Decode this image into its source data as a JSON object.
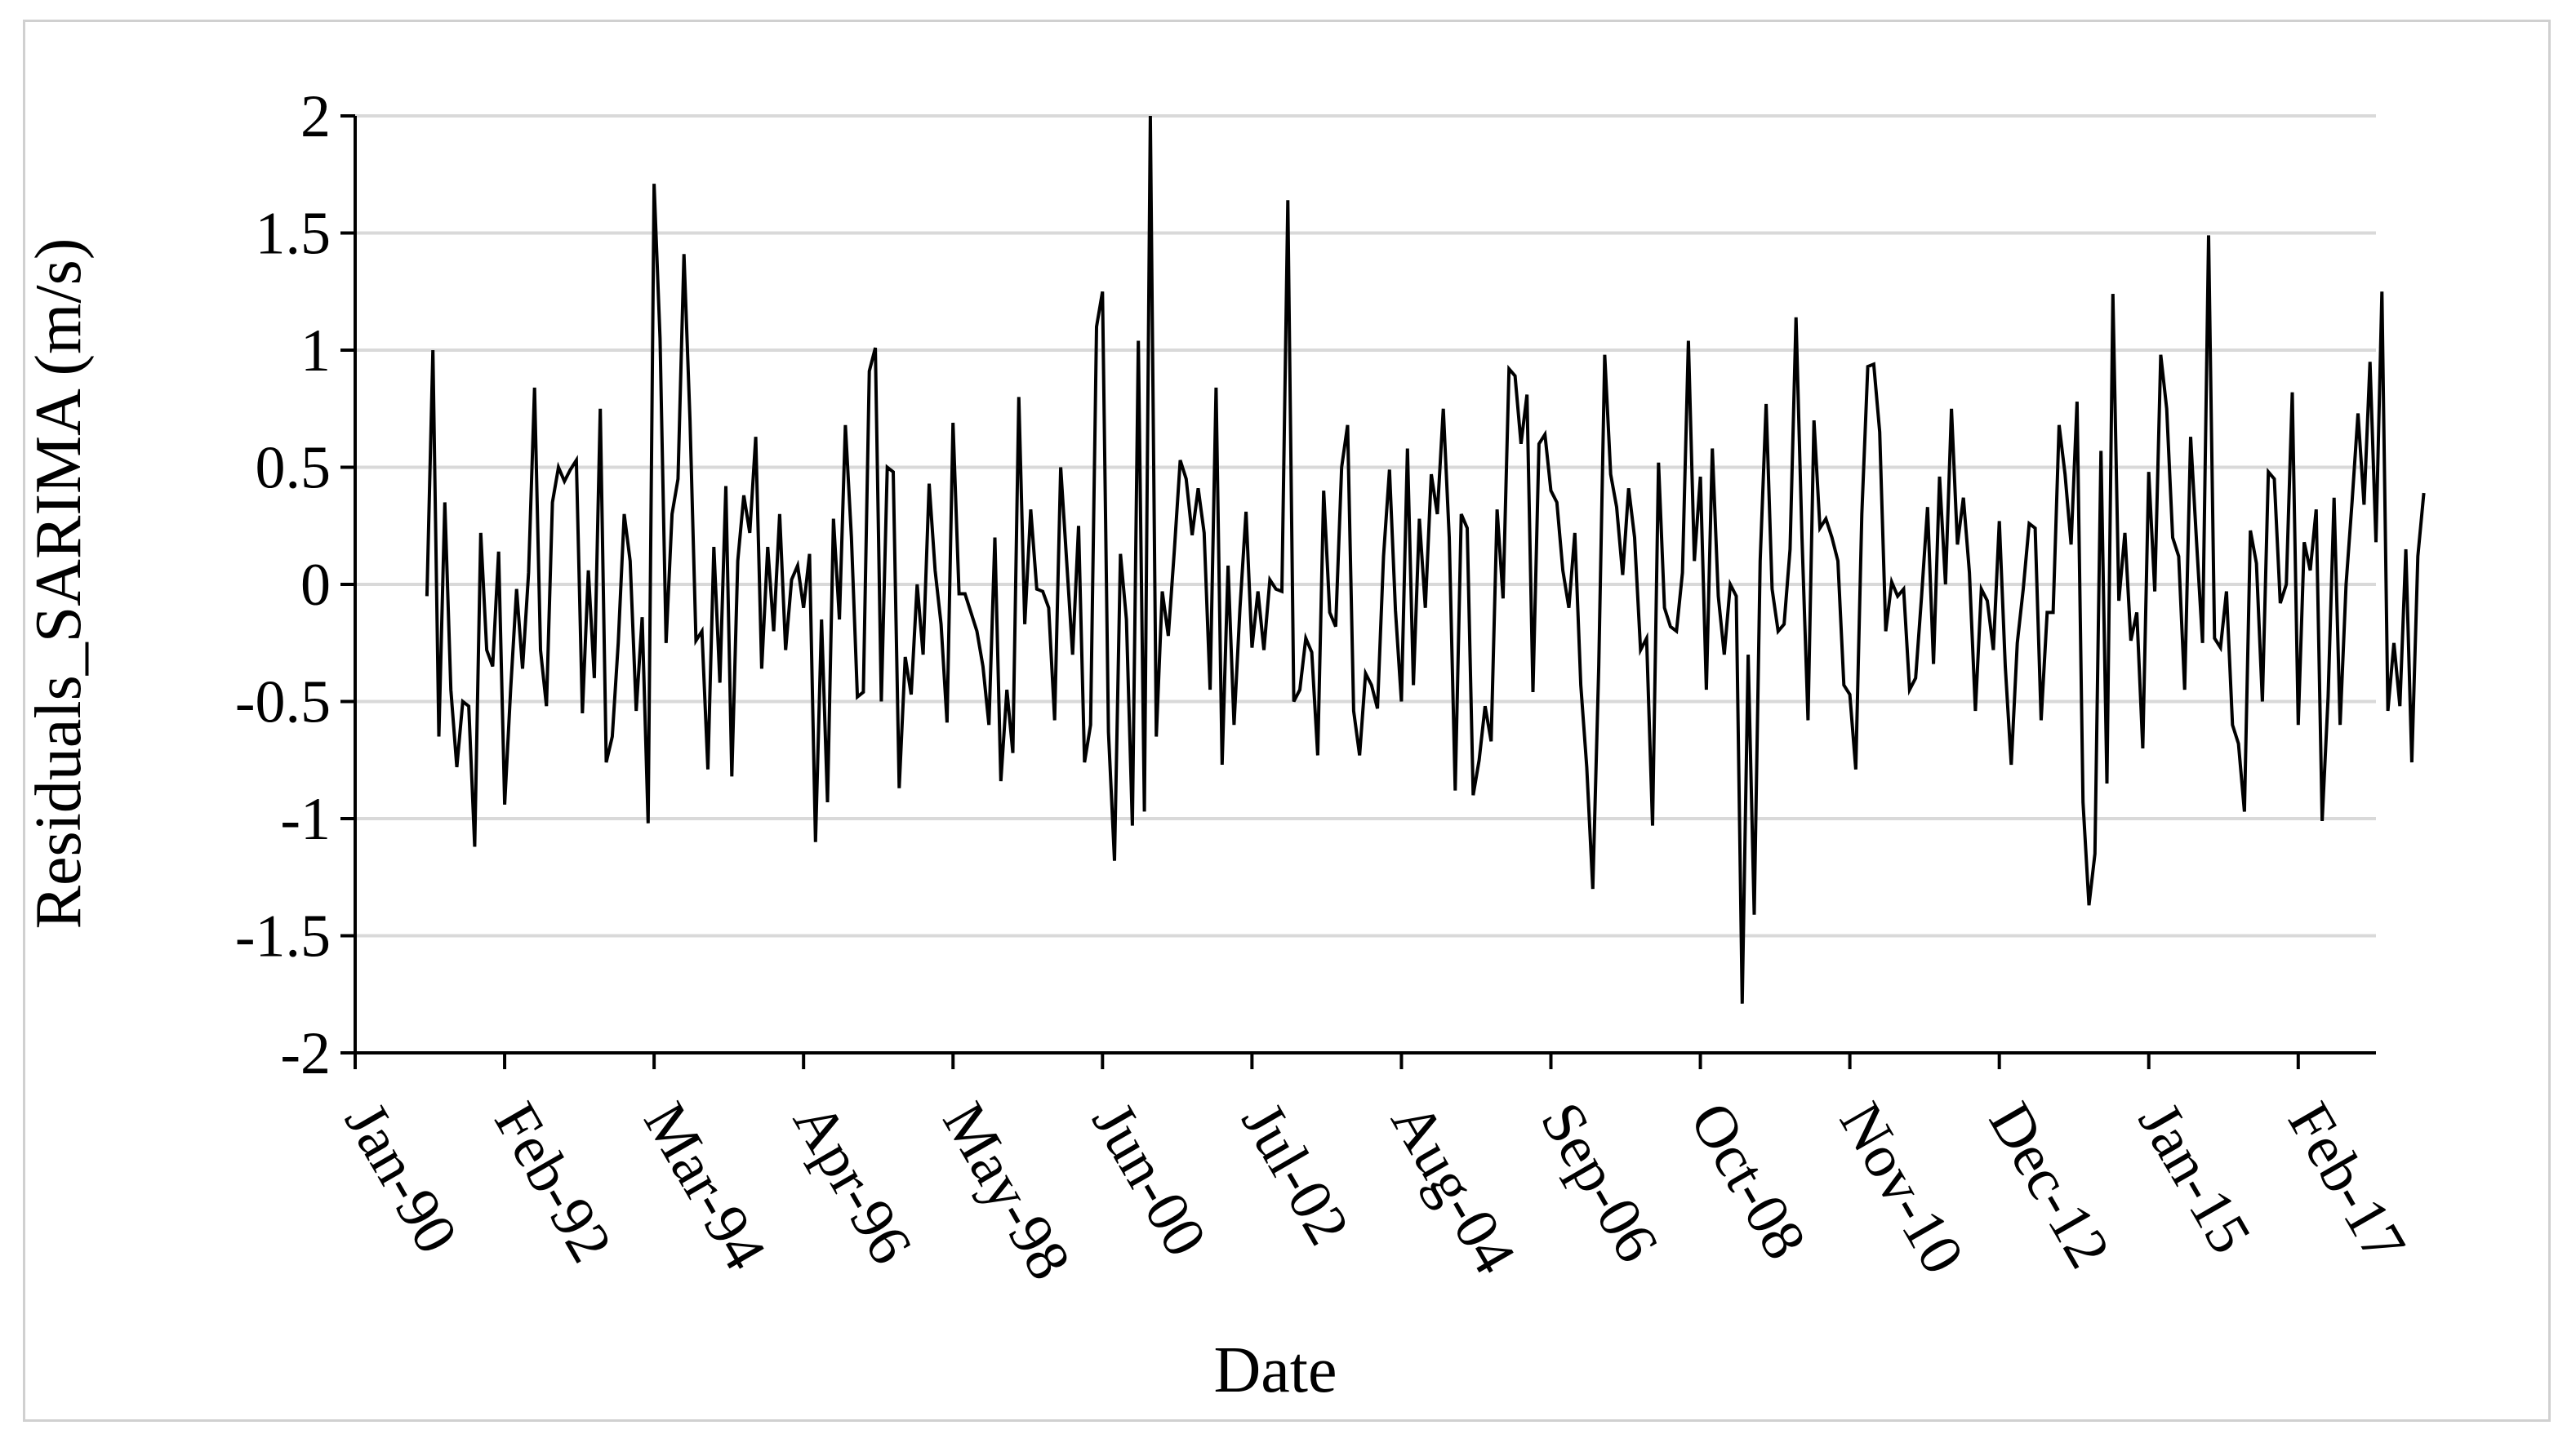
{
  "chart_data": {
    "type": "line",
    "title": "",
    "xlabel": "Date",
    "ylabel": "Residuals_SARIMA (m/s)",
    "ylim": [
      -2,
      2
    ],
    "yticks": [
      "-2",
      "-1.5",
      "-1",
      "-0.5",
      "0",
      "0.5",
      "1",
      "1.5",
      "2"
    ],
    "xlim": [
      "1990-01",
      "2018-03"
    ],
    "xticks": [
      {
        "label": "Jan-90",
        "date": "1990-01"
      },
      {
        "label": "Feb-92",
        "date": "1992-02"
      },
      {
        "label": "Mar-94",
        "date": "1994-03"
      },
      {
        "label": "Apr-96",
        "date": "1996-04"
      },
      {
        "label": "May-98",
        "date": "1998-05"
      },
      {
        "label": "Jun-00",
        "date": "2000-06"
      },
      {
        "label": "Jul-02",
        "date": "2002-07"
      },
      {
        "label": "Aug-04",
        "date": "2004-08"
      },
      {
        "label": "Sep-06",
        "date": "2006-09"
      },
      {
        "label": "Oct-08",
        "date": "2008-10"
      },
      {
        "label": "Nov-10",
        "date": "2010-11"
      },
      {
        "label": "Dec-12",
        "date": "2012-12"
      },
      {
        "label": "Jan-15",
        "date": "2015-01"
      },
      {
        "label": "Feb-17",
        "date": "2017-02"
      }
    ],
    "grid": true,
    "line_color": "#000000",
    "grid_color": "#d9d9d9",
    "series": [
      {
        "start": "1991-01",
        "frequency": "monthly",
        "values": [
          -0.05,
          1.0,
          -0.65,
          0.35,
          -0.45,
          -0.78,
          -0.5,
          -0.52,
          -1.12,
          0.22,
          -0.28,
          -0.35,
          0.14,
          -0.94,
          -0.45,
          -0.02,
          -0.36,
          0.05,
          0.84,
          -0.28,
          -0.52,
          0.35,
          0.5,
          0.44,
          0.49,
          0.53,
          -0.55,
          0.06,
          -0.4,
          0.75,
          -0.76,
          -0.65,
          -0.25,
          0.3,
          0.1,
          -0.54,
          -0.14,
          -1.02,
          1.71,
          1.05,
          -0.25,
          0.3,
          0.45,
          1.41,
          0.7,
          -0.24,
          -0.2,
          -0.79,
          0.16,
          -0.42,
          0.42,
          -0.82,
          0.1,
          0.38,
          0.22,
          0.63,
          -0.36,
          0.16,
          -0.2,
          0.3,
          -0.28,
          0.02,
          0.08,
          -0.1,
          0.13,
          -1.1,
          -0.15,
          -0.93,
          0.28,
          -0.15,
          0.68,
          0.2,
          -0.48,
          -0.46,
          0.91,
          1.01,
          -0.5,
          0.5,
          0.48,
          -0.87,
          -0.31,
          -0.47,
          0.0,
          -0.3,
          0.43,
          0.06,
          -0.17,
          -0.59,
          0.69,
          -0.04,
          -0.04,
          -0.12,
          -0.2,
          -0.35,
          -0.6,
          0.2,
          -0.84,
          -0.45,
          -0.72,
          0.8,
          -0.17,
          0.32,
          -0.02,
          -0.03,
          -0.1,
          -0.58,
          0.5,
          0.1,
          -0.3,
          0.25,
          -0.76,
          -0.6,
          1.1,
          1.25,
          -0.63,
          -1.18,
          0.13,
          -0.15,
          -1.03,
          1.04,
          -0.97,
          2.0,
          -0.65,
          -0.03,
          -0.22,
          0.14,
          0.53,
          0.45,
          0.21,
          0.41,
          0.22,
          -0.45,
          0.84,
          -0.77,
          0.08,
          -0.6,
          -0.1,
          0.31,
          -0.27,
          -0.03,
          -0.28,
          0.02,
          -0.02,
          -0.03,
          1.64,
          -0.5,
          -0.45,
          -0.23,
          -0.29,
          -0.73,
          0.4,
          -0.12,
          -0.18,
          0.5,
          0.68,
          -0.54,
          -0.73,
          -0.38,
          -0.43,
          -0.53,
          0.12,
          0.49,
          -0.11,
          -0.5,
          0.58,
          -0.43,
          0.28,
          -0.1,
          0.47,
          0.3,
          0.75,
          0.2,
          -0.88,
          0.3,
          0.24,
          -0.9,
          -0.75,
          -0.52,
          -0.67,
          0.32,
          -0.06,
          0.92,
          0.89,
          0.6,
          0.81,
          -0.46,
          0.6,
          0.64,
          0.4,
          0.35,
          0.06,
          -0.1,
          0.22,
          -0.43,
          -0.78,
          -1.3,
          -0.35,
          0.98,
          0.47,
          0.33,
          0.04,
          0.41,
          0.2,
          -0.28,
          -0.23,
          -1.03,
          0.52,
          -0.1,
          -0.18,
          -0.2,
          0.05,
          1.04,
          0.1,
          0.46,
          -0.45,
          0.58,
          -0.05,
          -0.3,
          0.0,
          -0.05,
          -1.79,
          -0.3,
          -1.41,
          0.1,
          0.77,
          -0.02,
          -0.2,
          -0.17,
          0.15,
          1.14,
          0.2,
          -0.58,
          0.7,
          0.24,
          0.28,
          0.2,
          0.1,
          -0.43,
          -0.47,
          -0.79,
          0.3,
          0.93,
          0.94,
          0.65,
          -0.2,
          0.01,
          -0.05,
          -0.02,
          -0.45,
          -0.4,
          -0.05,
          0.33,
          -0.34,
          0.46,
          0.0,
          0.75,
          0.17,
          0.37,
          0.05,
          -0.54,
          -0.02,
          -0.07,
          -0.28,
          0.27,
          -0.35,
          -0.77,
          -0.25,
          -0.02,
          0.26,
          0.24,
          -0.58,
          -0.12,
          -0.12,
          0.68,
          0.47,
          0.17,
          0.78,
          -0.93,
          -1.37,
          -1.15,
          0.57,
          -0.85,
          1.24,
          -0.07,
          0.22,
          -0.24,
          -0.12,
          -0.7,
          0.48,
          -0.03,
          0.98,
          0.75,
          0.2,
          0.12,
          -0.45,
          0.63,
          0.18,
          -0.25,
          1.49,
          -0.23,
          -0.27,
          -0.03,
          -0.6,
          -0.68,
          -0.97,
          0.23,
          0.09,
          -0.5,
          0.48,
          0.45,
          -0.08,
          0.0,
          0.82,
          -0.6,
          0.18,
          0.06,
          0.32,
          -1.01,
          -0.48,
          0.37,
          -0.6,
          0.0,
          0.35,
          0.73,
          0.34,
          0.95,
          0.18,
          1.25,
          -0.54,
          -0.25,
          -0.52,
          0.15,
          -0.76,
          0.12,
          0.39
        ]
      }
    ]
  }
}
